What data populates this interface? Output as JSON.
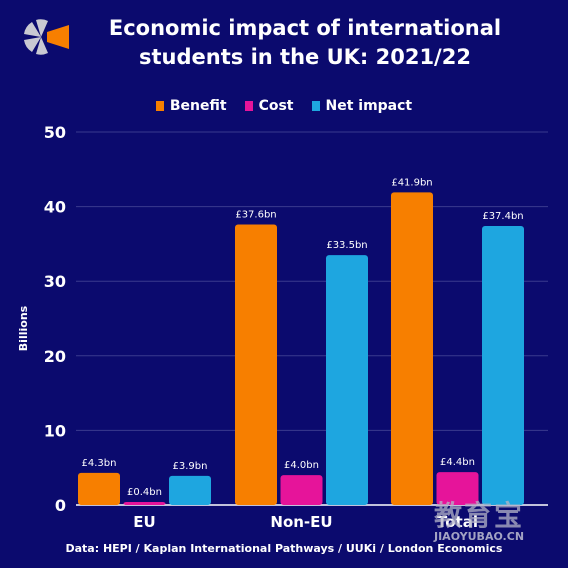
{
  "title": "Economic impact of international students in the UK: 2021/22",
  "source": "Data: HEPI / Kaplan International Pathways / UUKi / London Economics",
  "watermark": {
    "cn": "教育宝",
    "en": "JIAOYUBAO.CN"
  },
  "colors": {
    "background": "#0b0a6e",
    "benefit": "#f77f00",
    "cost": "#e6149a",
    "net": "#1ea6e0",
    "grid": "#3a3a8e",
    "logo_grey": "#c9c9d2",
    "logo_orange": "#f77f00"
  },
  "chart_data": {
    "type": "bar",
    "title": "Economic impact of international students in the UK: 2021/22",
    "xlabel": "",
    "ylabel": "Billions",
    "ylim": [
      0,
      50
    ],
    "yticks": [
      0,
      10,
      20,
      30,
      40,
      50
    ],
    "grid": true,
    "legend_position": "top-center",
    "categories": [
      "EU",
      "Non-EU",
      "Total"
    ],
    "series": [
      {
        "name": "Benefit",
        "values": [
          4.3,
          37.6,
          41.9
        ],
        "labels": [
          "£4.3bn",
          "£37.6bn",
          "£41.9bn"
        ]
      },
      {
        "name": "Cost",
        "values": [
          0.4,
          4.0,
          4.4
        ],
        "labels": [
          "£0.4bn",
          "£4.0bn",
          "£4.4bn"
        ]
      },
      {
        "name": "Net impact",
        "values": [
          3.9,
          33.5,
          37.4
        ],
        "labels": [
          "£3.9bn",
          "£33.5bn",
          "£37.4bn"
        ]
      }
    ]
  }
}
